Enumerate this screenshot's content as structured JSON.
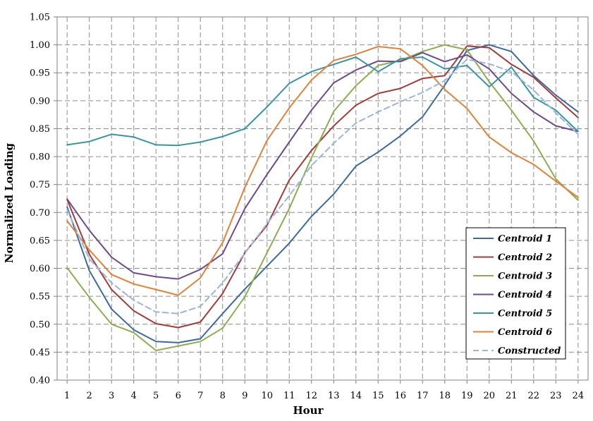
{
  "chart_data": {
    "type": "line",
    "title": "",
    "xlabel": "Hour",
    "ylabel": "Normalized Loading",
    "x": [
      1,
      2,
      3,
      4,
      5,
      6,
      7,
      8,
      9,
      10,
      11,
      12,
      13,
      14,
      15,
      16,
      17,
      18,
      19,
      20,
      21,
      22,
      23,
      24
    ],
    "x_tick_labels": [
      "1",
      "2",
      "3",
      "4",
      "5",
      "6",
      "7",
      "8",
      "9",
      "10",
      "11",
      "12",
      "13",
      "14",
      "15",
      "16",
      "17",
      "18",
      "19",
      "20",
      "21",
      "22",
      "23",
      "24"
    ],
    "xlim": [
      0.55,
      24.45
    ],
    "ylim": [
      0.4,
      1.05
    ],
    "y_ticks": [
      0.4,
      0.45,
      0.5,
      0.55,
      0.6,
      0.65,
      0.7,
      0.75,
      0.8,
      0.85,
      0.9,
      0.95,
      1.0,
      1.05
    ],
    "y_tick_labels": [
      "0.40",
      "0.45",
      "0.50",
      "0.55",
      "0.60",
      "0.65",
      "0.70",
      "0.75",
      "0.80",
      "0.85",
      "0.90",
      "0.95",
      "1.00",
      "1.05"
    ],
    "grid": true,
    "legend_position": "bottom-right",
    "series": [
      {
        "name": "Centroid 1",
        "color": "#3b6a9e",
        "dashed": false,
        "values": [
          0.71,
          0.596,
          0.527,
          0.49,
          0.469,
          0.467,
          0.474,
          0.519,
          0.563,
          0.604,
          0.645,
          0.693,
          0.733,
          0.783,
          0.808,
          0.837,
          0.871,
          0.928,
          0.99,
          1.0,
          0.988,
          0.945,
          0.91,
          0.88
        ]
      },
      {
        "name": "Centroid 2",
        "color": "#a33b3b",
        "dashed": false,
        "values": [
          0.723,
          0.625,
          0.562,
          0.524,
          0.501,
          0.494,
          0.504,
          0.555,
          0.628,
          0.677,
          0.758,
          0.811,
          0.855,
          0.892,
          0.913,
          0.922,
          0.94,
          0.945,
          0.998,
          0.995,
          0.965,
          0.942,
          0.905,
          0.87
        ]
      },
      {
        "name": "Centroid 3",
        "color": "#8cad4f",
        "dashed": false,
        "values": [
          0.601,
          0.548,
          0.5,
          0.485,
          0.453,
          0.461,
          0.469,
          0.493,
          0.549,
          0.628,
          0.707,
          0.798,
          0.881,
          0.927,
          0.963,
          0.972,
          0.988,
          1.0,
          0.991,
          0.934,
          0.883,
          0.828,
          0.76,
          0.722
        ]
      },
      {
        "name": "Centroid 4",
        "color": "#6e4a8a",
        "dashed": false,
        "values": [
          0.724,
          0.668,
          0.62,
          0.592,
          0.585,
          0.581,
          0.598,
          0.626,
          0.707,
          0.768,
          0.826,
          0.883,
          0.932,
          0.955,
          0.971,
          0.97,
          0.986,
          0.97,
          0.982,
          0.957,
          0.913,
          0.88,
          0.855,
          0.845
        ]
      },
      {
        "name": "Centroid 5",
        "color": "#3895a4",
        "dashed": false,
        "values": [
          0.821,
          0.827,
          0.84,
          0.835,
          0.821,
          0.82,
          0.826,
          0.836,
          0.85,
          0.889,
          0.931,
          0.952,
          0.965,
          0.978,
          0.952,
          0.975,
          0.978,
          0.957,
          0.963,
          0.925,
          0.96,
          0.906,
          0.883,
          0.845
        ]
      },
      {
        "name": "Centroid 6",
        "color": "#e08238",
        "dashed": false,
        "values": [
          0.685,
          0.633,
          0.589,
          0.572,
          0.562,
          0.552,
          0.583,
          0.646,
          0.745,
          0.829,
          0.887,
          0.937,
          0.972,
          0.983,
          0.997,
          0.993,
          0.963,
          0.92,
          0.886,
          0.835,
          0.807,
          0.786,
          0.756,
          0.727
        ]
      },
      {
        "name": "Constructed",
        "color": "#9bb4d8",
        "dashed": true,
        "values": [
          0.705,
          0.617,
          0.574,
          0.543,
          0.522,
          0.519,
          0.532,
          0.574,
          0.627,
          0.68,
          0.73,
          0.784,
          0.824,
          0.86,
          0.88,
          0.898,
          0.915,
          0.936,
          0.974,
          0.966,
          0.952,
          0.919,
          0.878,
          0.84
        ]
      }
    ]
  }
}
